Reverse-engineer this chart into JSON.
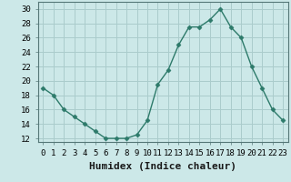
{
  "x": [
    0,
    1,
    2,
    3,
    4,
    5,
    6,
    7,
    8,
    9,
    10,
    11,
    12,
    13,
    14,
    15,
    16,
    17,
    18,
    19,
    20,
    21,
    22,
    23
  ],
  "y": [
    19,
    18,
    16,
    15,
    14,
    13,
    12,
    12,
    12,
    12.5,
    14.5,
    19.5,
    21.5,
    25,
    27.5,
    27.5,
    28.5,
    30,
    27.5,
    26,
    22,
    19,
    16,
    14.5
  ],
  "line_color": "#2d7a6a",
  "marker": "D",
  "marker_size": 2.5,
  "bg_color": "#cce8e8",
  "grid_color": "#aacccc",
  "xlabel": "Humidex (Indice chaleur)",
  "ylim": [
    11.5,
    31
  ],
  "xlim": [
    -0.5,
    23.5
  ],
  "yticks": [
    12,
    14,
    16,
    18,
    20,
    22,
    24,
    26,
    28,
    30
  ],
  "xtick_labels": [
    "0",
    "1",
    "2",
    "3",
    "4",
    "5",
    "6",
    "7",
    "8",
    "9",
    "10",
    "11",
    "12",
    "13",
    "14",
    "15",
    "16",
    "17",
    "18",
    "19",
    "20",
    "21",
    "22",
    "23"
  ],
  "xlabel_fontsize": 8,
  "tick_fontsize": 6.5
}
